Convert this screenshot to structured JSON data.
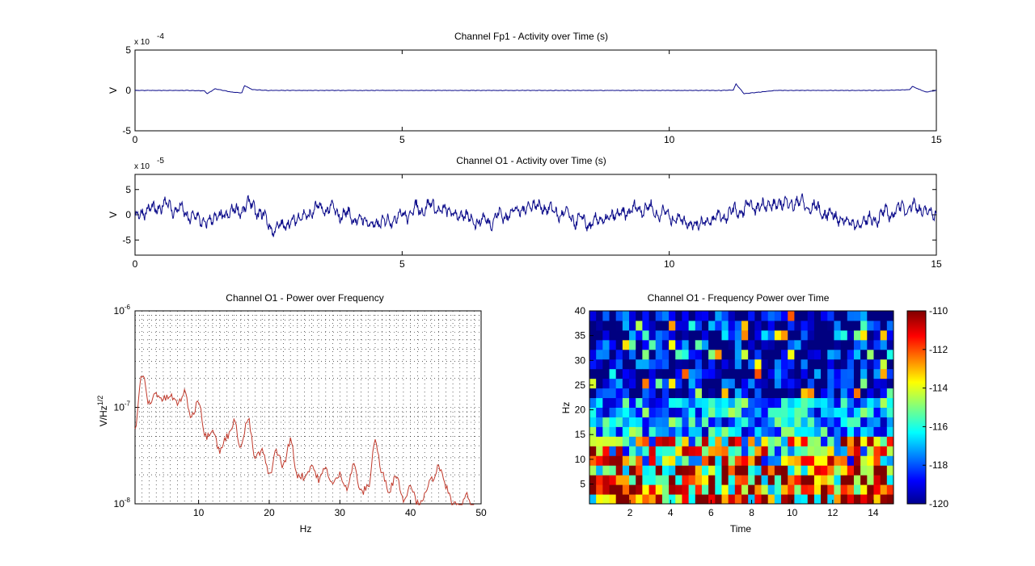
{
  "colors": {
    "background": "#ffffff",
    "trace": "#0b0b8a",
    "psd": "#c0392b",
    "axis": "#000000"
  },
  "chart_data": [
    {
      "type": "line",
      "title": "Channel Fp1 - Activity over Time (s)",
      "xlabel": "",
      "ylabel": "V",
      "xlim": [
        0,
        15
      ],
      "ylim": [
        -0.0005,
        0.0005
      ],
      "x_ticks": [
        "0",
        "5",
        "10",
        "15"
      ],
      "y_ticks": [
        "5",
        "0",
        "-5"
      ],
      "exponent": {
        "base": "x 10",
        "power": "-4"
      },
      "grid": false,
      "series": [
        {
          "x": [
            0,
            0.5,
            1.0,
            1.3,
            1.35,
            1.5,
            1.8,
            2.0,
            2.05,
            2.2,
            2.5,
            3,
            4,
            5,
            6,
            7,
            8,
            9,
            10,
            11,
            11.2,
            11.25,
            11.4,
            12,
            13,
            14,
            14.5,
            14.55,
            14.8,
            15
          ],
          "values": [
            0,
            0,
            0,
            -5e-06,
            -4e-05,
            2e-05,
            -2e-05,
            -3e-05,
            6e-05,
            1e-05,
            0,
            0,
            0,
            0,
            0,
            0,
            0,
            0,
            0,
            0,
            5e-06,
            8e-05,
            -4e-05,
            0,
            0,
            0,
            1e-05,
            5e-05,
            -2e-05,
            0
          ]
        }
      ]
    },
    {
      "type": "line",
      "title": "Channel O1 - Activity over Time (s)",
      "xlabel": "",
      "ylabel": "V",
      "xlim": [
        0,
        15
      ],
      "ylim": [
        -8e-05,
        8e-05
      ],
      "x_ticks": [
        "0",
        "5",
        "10",
        "15"
      ],
      "y_ticks": [
        "5",
        "0",
        "-5"
      ],
      "exponent": {
        "base": "x 10",
        "power": "-5"
      },
      "grid": false,
      "series": [
        {
          "x": [
            0,
            0.6,
            1.3,
            2.2,
            2.6,
            3.5,
            4.5,
            5.5,
            6.5,
            7.5,
            8.5,
            9.5,
            10.5,
            11.5,
            12.4,
            13.5,
            14.5,
            15
          ],
          "values": [
            0,
            2e-05,
            -1.5e-05,
            2e-05,
            -3e-05,
            1.5e-05,
            -2e-05,
            1.8e-05,
            -1.5e-05,
            2e-05,
            -1.8e-05,
            1.5e-05,
            -2e-05,
            1.5e-05,
            2.5e-05,
            -2e-05,
            1.8e-05,
            0
          ]
        }
      ]
    },
    {
      "type": "line",
      "title": "Channel O1 - Power over Frequency",
      "xlabel": "Hz",
      "ylabel": "V/Hz",
      "ylabel_power": "1/2",
      "xlim": [
        1,
        50
      ],
      "ylim": [
        1e-08,
        1e-06
      ],
      "y_scale": "log",
      "x_ticks": [
        "10",
        "20",
        "30",
        "40",
        "50"
      ],
      "y_ticks": [
        {
          "base": "10",
          "power": "-6"
        },
        {
          "base": "10",
          "power": "-7"
        },
        {
          "base": "10",
          "power": "-8"
        }
      ],
      "grid": true,
      "series": [
        {
          "x": [
            1,
            2,
            3,
            4,
            5,
            6,
            7,
            8,
            9,
            10,
            11,
            12,
            13,
            14,
            15,
            16,
            17,
            18,
            19,
            20,
            21,
            22,
            23,
            24,
            25,
            26,
            27,
            28,
            29,
            30,
            31,
            32,
            33,
            34,
            35,
            36,
            37,
            38,
            39,
            40,
            41,
            42,
            43,
            44,
            45,
            46,
            47,
            48,
            49
          ],
          "values": [
            6e-08,
            2.2e-07,
            1.1e-07,
            1.4e-07,
            1.2e-07,
            1.3e-07,
            1.1e-07,
            1.4e-07,
            8e-08,
            1.2e-07,
            5e-08,
            6e-08,
            3.5e-08,
            5e-08,
            7e-08,
            4e-08,
            7.5e-08,
            3e-08,
            3.5e-08,
            2e-08,
            3.5e-08,
            2.5e-08,
            4.5e-08,
            2e-08,
            1.9e-08,
            2.5e-08,
            1.8e-08,
            2.3e-08,
            1.6e-08,
            2e-08,
            1.5e-08,
            2.5e-08,
            1.3e-08,
            1.5e-08,
            4.5e-08,
            2e-08,
            1.4e-08,
            2e-08,
            1.1e-08,
            1.6e-08,
            1e-08,
            1.2e-08,
            1.8e-08,
            2.4e-08,
            1.5e-08,
            1e-08,
            9e-09,
            1.2e-08,
            8e-09
          ]
        }
      ]
    },
    {
      "type": "heatmap",
      "title": "Channel O1 - Frequency Power over Time",
      "xlabel": "Time",
      "ylabel": "Hz",
      "xlim": [
        0,
        15
      ],
      "ylim": [
        1,
        40
      ],
      "x_ticks": [
        "2",
        "4",
        "6",
        "8",
        "10",
        "12",
        "14"
      ],
      "y_ticks": [
        "40",
        "35",
        "30",
        "25",
        "20",
        "15",
        "10",
        "5"
      ],
      "colorbar": {
        "range": [
          -120,
          -110
        ],
        "ticks": [
          "-110",
          "-112",
          "-114",
          "-116",
          "-118",
          "-120"
        ],
        "colormap": "jet"
      },
      "description_values": "power dB: about -110 to -113 in 1-12 Hz band, about -118 to -120 above 25 Hz with sparse bright cells"
    }
  ]
}
